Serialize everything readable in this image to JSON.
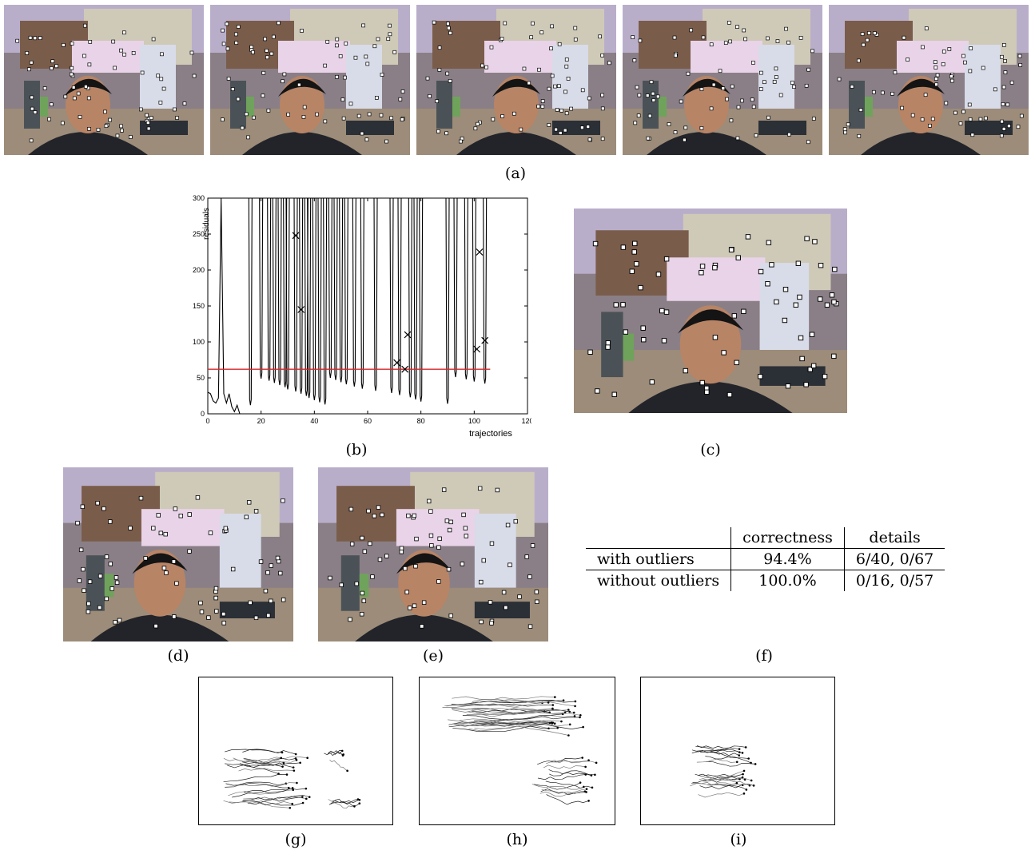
{
  "captions": {
    "a": "(a)",
    "b": "(b)",
    "c": "(c)",
    "d": "(d)",
    "e": "(e)",
    "f": "(f)",
    "g": "(g)",
    "h": "(h)",
    "i": "(i)"
  },
  "chart_data": {
    "type": "line",
    "xlabel": "trajectories",
    "ylabel": "residuals",
    "xlim": [
      0,
      120
    ],
    "ylim": [
      0,
      300
    ],
    "xticks": [
      0,
      20,
      40,
      60,
      80,
      100,
      120
    ],
    "yticks": [
      0,
      50,
      100,
      150,
      200,
      250,
      300
    ],
    "threshold": 62,
    "threshold_color": "#d62728",
    "series": [
      {
        "x": [
          0,
          1,
          2,
          3,
          4,
          5,
          6,
          7,
          8,
          9,
          10,
          11,
          12
        ],
        "y": [
          30,
          28,
          18,
          15,
          22,
          300,
          28,
          15,
          28,
          10,
          3,
          12,
          0
        ]
      }
    ],
    "spikes": [
      16,
      20,
      23,
      25,
      27,
      29,
      30,
      33,
      35,
      37,
      38,
      40,
      42,
      44,
      46,
      48,
      50,
      52,
      55,
      58,
      63,
      69,
      72,
      76,
      78,
      80,
      90,
      93,
      97,
      100,
      104
    ],
    "markers": [
      {
        "x": 33,
        "y": 248
      },
      {
        "x": 35,
        "y": 145
      },
      {
        "x": 71,
        "y": 71
      },
      {
        "x": 74,
        "y": 62
      },
      {
        "x": 75,
        "y": 110
      },
      {
        "x": 101,
        "y": 90
      },
      {
        "x": 102,
        "y": 225
      },
      {
        "x": 104,
        "y": 102
      }
    ]
  },
  "table": {
    "headers": [
      "",
      "correctness",
      "details"
    ],
    "rows": [
      {
        "label": "with outliers",
        "correctness": "94.4%",
        "details": "6/40, 0/67"
      },
      {
        "label": "without outliers",
        "correctness": "100.0%",
        "details": "0/16, 0/57"
      }
    ]
  }
}
